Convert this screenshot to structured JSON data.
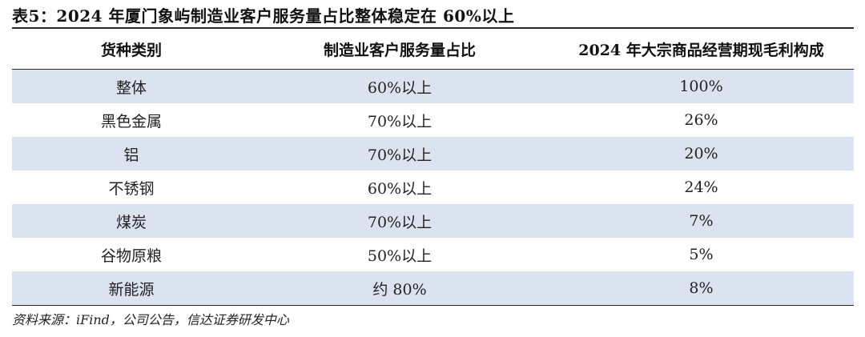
{
  "title": "表5：2024 年厦门象屿制造业客户服务量占比整体稳定在 60%以上",
  "table": {
    "headers": [
      "货种类别",
      "制造业客户服务量占比",
      "2024 年大宗商品经营期现毛利构成"
    ],
    "rows": [
      [
        "整体",
        "60%以上",
        "100%"
      ],
      [
        "黑色金属",
        "70%以上",
        "26%"
      ],
      [
        "铝",
        "70%以上",
        "20%"
      ],
      [
        "不锈钢",
        "60%以上",
        "24%"
      ],
      [
        "煤炭",
        "70%以上",
        "7%"
      ],
      [
        "谷物原粮",
        "50%以上",
        "5%"
      ],
      [
        "新能源",
        "约 80%",
        "8%"
      ]
    ]
  },
  "source": "资料来源：iFind，公司公告，信达证券研发中心",
  "colors": {
    "row_shade": "#dce3f0",
    "rule": "#2a2a2a"
  }
}
